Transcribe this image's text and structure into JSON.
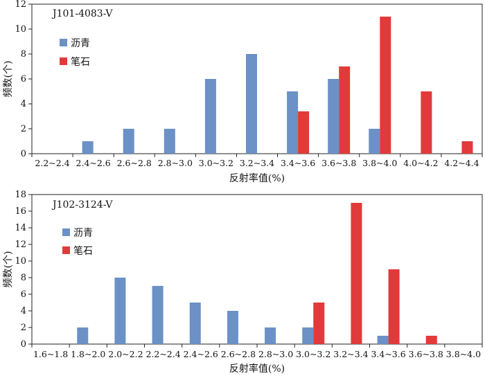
{
  "colors": {
    "bitumen": "#6b91c6",
    "graptolite": "#e23a3a",
    "axis": "#222222"
  },
  "chart_data": [
    {
      "type": "bar",
      "title": "J101-4083-V",
      "xlabel": "反射率值(%)",
      "ylabel": "频数(个)",
      "ylim": [
        0,
        12
      ],
      "yticks": [
        0,
        2,
        4,
        6,
        8,
        10,
        12
      ],
      "grid": false,
      "legend_position": "top-left",
      "categories": [
        "2.2~2.4",
        "2.4~2.6",
        "2.6~2.8",
        "2.8~3.0",
        "3.0~3.2",
        "3.2~3.4",
        "3.4~3.6",
        "3.6~3.8",
        "3.8~4.0",
        "4.0~4.2",
        "4.2~4.4"
      ],
      "series": [
        {
          "name": "沥青",
          "color": "#6b91c6",
          "values": [
            0,
            1,
            2,
            2,
            6,
            8,
            5,
            6,
            2,
            0,
            0
          ]
        },
        {
          "name": "笔石",
          "color": "#e23a3a",
          "values": [
            0,
            0,
            0,
            0,
            0,
            0,
            3.4,
            7,
            11,
            5,
            1
          ]
        }
      ]
    },
    {
      "type": "bar",
      "title": "J102-3124-V",
      "xlabel": "反射率值(%)",
      "ylabel": "频数(个)",
      "ylim": [
        0,
        18
      ],
      "yticks": [
        0,
        2,
        4,
        6,
        8,
        10,
        12,
        14,
        16,
        18
      ],
      "grid": false,
      "legend_position": "top-left",
      "categories": [
        "1.6~1.8",
        "1.8~2.0",
        "2.0~2.2",
        "2.2~2.4",
        "2.4~2.6",
        "2.6~2.8",
        "2.8~3.0",
        "3.0~3.2",
        "3.2~3.4",
        "3.4~3.6",
        "3.6~3.8",
        "3.8~4.0"
      ],
      "series": [
        {
          "name": "沥青",
          "color": "#6b91c6",
          "values": [
            0,
            2,
            8,
            7,
            5,
            4,
            2,
            2,
            0,
            1,
            0,
            0
          ]
        },
        {
          "name": "笔石",
          "color": "#e23a3a",
          "values": [
            0,
            0,
            0,
            0,
            0,
            0,
            0,
            5,
            17,
            9,
            1,
            0
          ]
        }
      ]
    }
  ]
}
